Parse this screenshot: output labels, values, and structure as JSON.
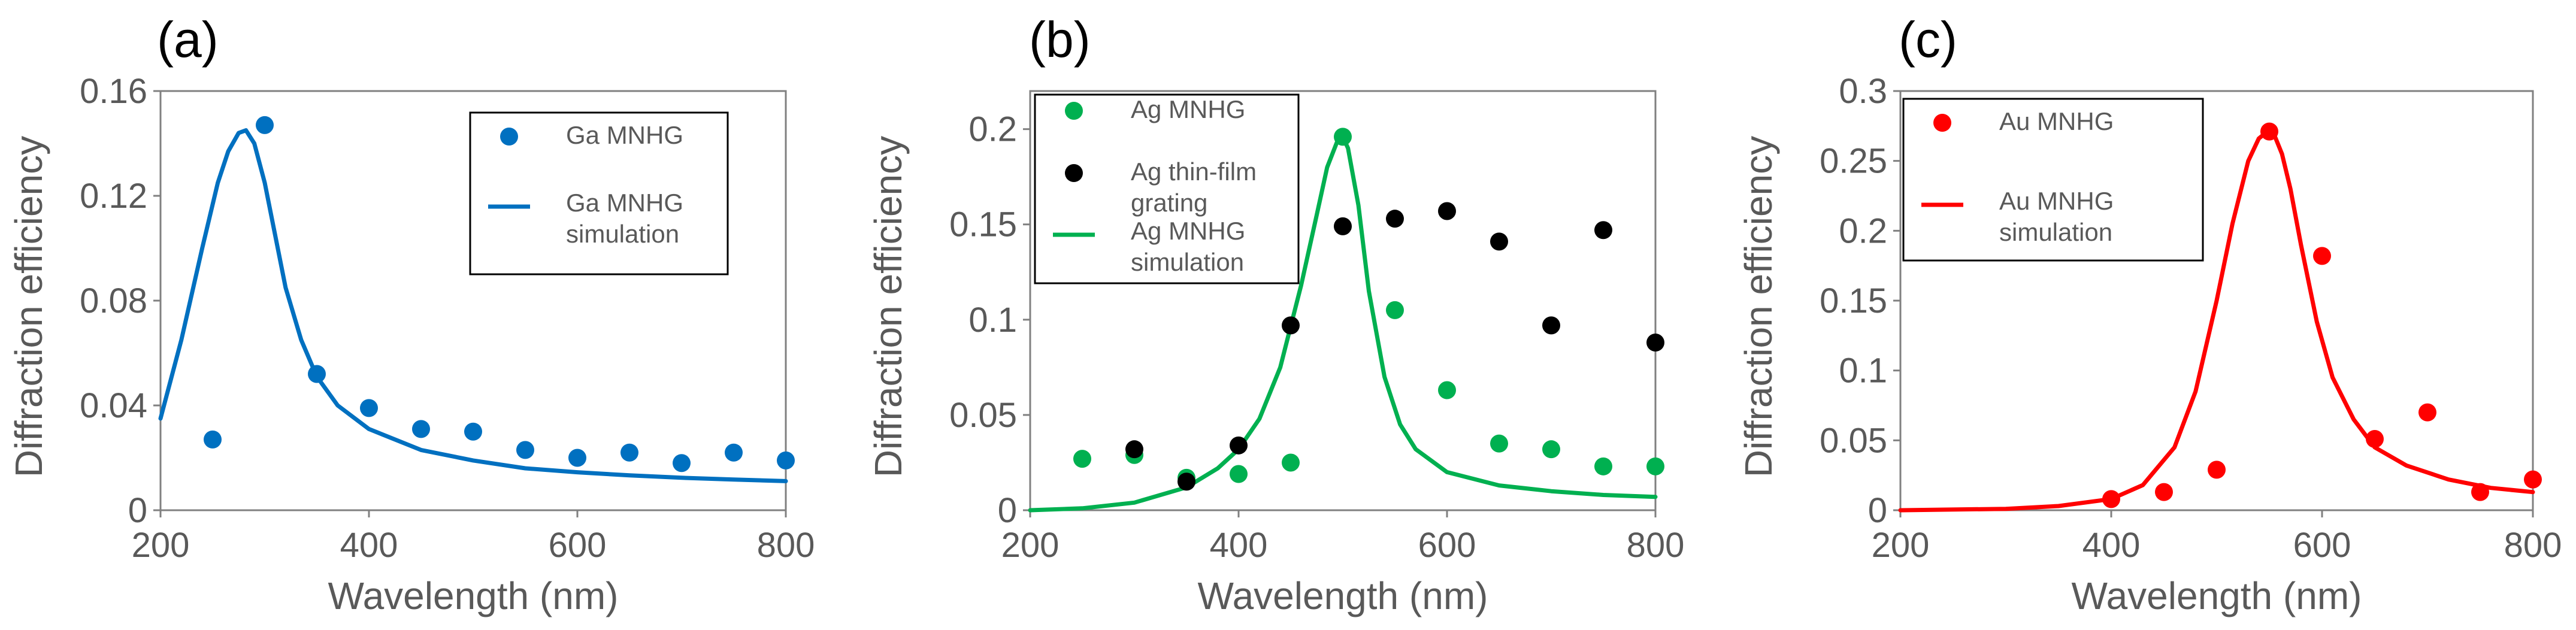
{
  "chart_data": [
    {
      "type": "scatter",
      "panel_label": "(a)",
      "xlabel": "Wavelength (nm)",
      "ylabel": "Diffraction efficiency",
      "xlim": [
        200,
        800
      ],
      "ylim": [
        0,
        0.16
      ],
      "xticks": [
        200,
        400,
        600,
        800
      ],
      "yticks": [
        0,
        0.04,
        0.08,
        0.12,
        0.16
      ],
      "yticklabels": [
        "0",
        "0.04",
        "0.08",
        "0.12",
        "0.16"
      ],
      "series": [
        {
          "name": "Ga MNHG",
          "kind": "scatter",
          "color": "#0070C0",
          "x": [
            250,
            300,
            350,
            400,
            450,
            500,
            550,
            600,
            650,
            700,
            750,
            800
          ],
          "y": [
            0.027,
            0.147,
            0.052,
            0.039,
            0.031,
            0.03,
            0.023,
            0.02,
            0.022,
            0.018,
            0.022,
            0.019
          ]
        },
        {
          "name": "Ga MNHG simulation",
          "label_lines": [
            "Ga MNHG",
            "simulation"
          ],
          "kind": "line",
          "color": "#0070C0",
          "x": [
            200,
            220,
            240,
            255,
            265,
            275,
            282,
            290,
            300,
            310,
            320,
            335,
            350,
            370,
            400,
            450,
            500,
            550,
            600,
            650,
            700,
            750,
            800
          ],
          "y": [
            0.035,
            0.065,
            0.1,
            0.125,
            0.137,
            0.144,
            0.145,
            0.14,
            0.125,
            0.105,
            0.085,
            0.065,
            0.051,
            0.04,
            0.031,
            0.023,
            0.019,
            0.016,
            0.0145,
            0.0133,
            0.0124,
            0.0117,
            0.0111
          ]
        }
      ]
    },
    {
      "type": "scatter",
      "panel_label": "(b)",
      "xlabel": "Wavelength (nm)",
      "ylabel": "Diffraction efficiency",
      "xlim": [
        200,
        800
      ],
      "ylim": [
        0,
        0.22
      ],
      "xticks": [
        200,
        400,
        600,
        800
      ],
      "yticks": [
        0,
        0.05,
        0.1,
        0.15,
        0.2
      ],
      "yticklabels": [
        "0",
        "0.05",
        "0.1",
        "0.15",
        "0.2"
      ],
      "series": [
        {
          "name": "Ag MNHG",
          "kind": "scatter",
          "color": "#00B050",
          "x": [
            250,
            300,
            350,
            400,
            450,
            500,
            550,
            600,
            650,
            700,
            750,
            800
          ],
          "y": [
            0.027,
            0.029,
            0.017,
            0.019,
            0.025,
            0.196,
            0.105,
            0.063,
            0.035,
            0.032,
            0.023,
            0.023
          ]
        },
        {
          "name": "Ag thin-film grating",
          "label_lines": [
            "Ag thin-film",
            "grating"
          ],
          "kind": "scatter",
          "color": "#000000",
          "x": [
            300,
            350,
            400,
            450,
            500,
            550,
            600,
            650,
            700,
            750,
            800
          ],
          "y": [
            0.032,
            0.015,
            0.034,
            0.097,
            0.149,
            0.153,
            0.157,
            0.141,
            0.097,
            0.147,
            0.088
          ]
        },
        {
          "name": "Ag MNHG simulation",
          "label_lines": [
            "Ag MNHG",
            "simulation"
          ],
          "kind": "line",
          "color": "#00B050",
          "x": [
            200,
            250,
            300,
            350,
            380,
            400,
            420,
            440,
            460,
            475,
            485,
            495,
            500,
            505,
            515,
            525,
            540,
            555,
            570,
            600,
            650,
            700,
            750,
            800
          ],
          "y": [
            0.0,
            0.001,
            0.004,
            0.012,
            0.022,
            0.032,
            0.048,
            0.075,
            0.118,
            0.155,
            0.18,
            0.194,
            0.196,
            0.19,
            0.16,
            0.115,
            0.07,
            0.045,
            0.032,
            0.02,
            0.013,
            0.01,
            0.008,
            0.007
          ]
        }
      ]
    },
    {
      "type": "scatter",
      "panel_label": "(c)",
      "xlabel": "Wavelength (nm)",
      "ylabel": "Diffraction efficiency",
      "xlim": [
        200,
        800
      ],
      "ylim": [
        0,
        0.3
      ],
      "xticks": [
        200,
        400,
        600,
        800
      ],
      "yticks": [
        0,
        0.05,
        0.1,
        0.15,
        0.2,
        0.25,
        0.3
      ],
      "yticklabels": [
        "0",
        "0.05",
        "0.1",
        "0.15",
        "0.2",
        "0.25",
        "0.3"
      ],
      "series": [
        {
          "name": "Au MNHG",
          "kind": "scatter",
          "color": "#FF0000",
          "x": [
            400,
            450,
            500,
            550,
            600,
            650,
            700,
            750,
            800
          ],
          "y": [
            0.008,
            0.013,
            0.029,
            0.271,
            0.182,
            0.051,
            0.07,
            0.013,
            0.022
          ]
        },
        {
          "name": "Au MNHG simulation",
          "label_lines": [
            "Au MNHG",
            "simulation"
          ],
          "kind": "line",
          "color": "#FF0000",
          "x": [
            200,
            300,
            350,
            400,
            430,
            460,
            480,
            500,
            515,
            530,
            540,
            548,
            555,
            562,
            570,
            580,
            595,
            610,
            630,
            650,
            680,
            720,
            760,
            800
          ],
          "y": [
            0.0,
            0.001,
            0.003,
            0.008,
            0.018,
            0.045,
            0.085,
            0.15,
            0.205,
            0.25,
            0.266,
            0.271,
            0.268,
            0.255,
            0.23,
            0.19,
            0.135,
            0.095,
            0.065,
            0.045,
            0.032,
            0.022,
            0.016,
            0.013
          ]
        }
      ]
    }
  ]
}
